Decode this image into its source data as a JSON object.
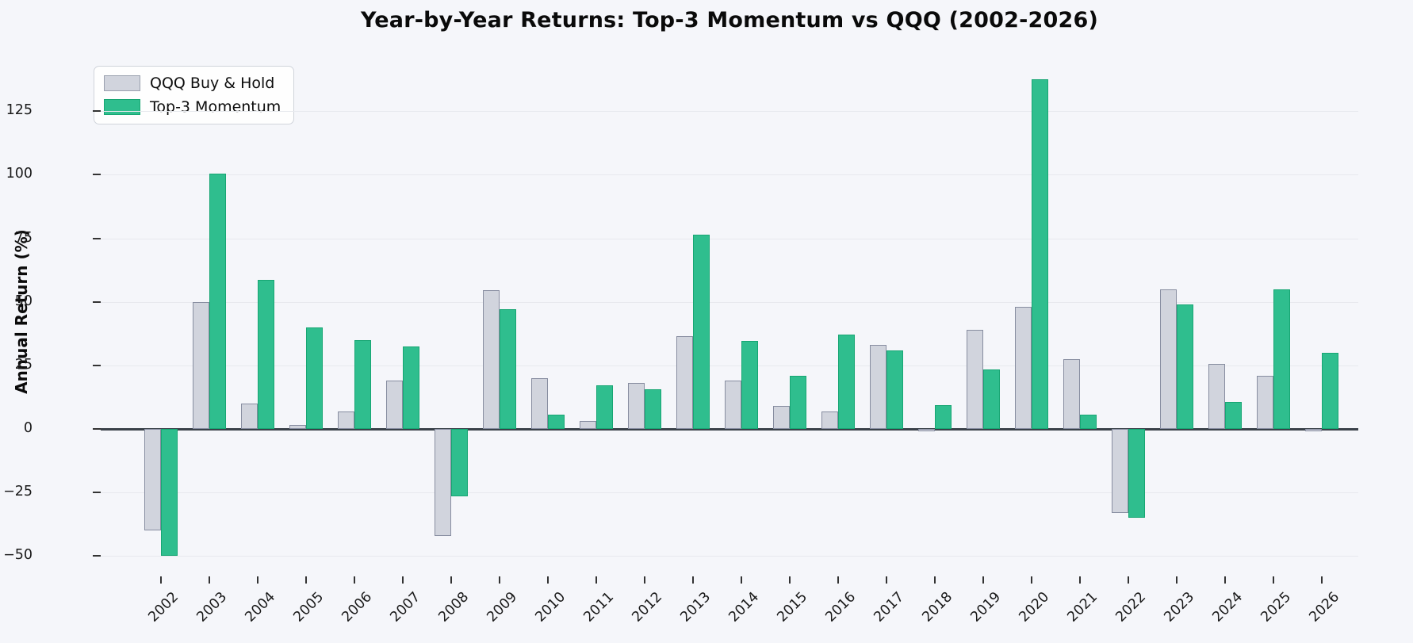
{
  "title": "Year-by-Year Returns: Top-3 Momentum vs QQQ (2002-2026)",
  "ylabel": "Annual Return (%)",
  "legend": {
    "items": [
      {
        "label": "QQQ Buy & Hold",
        "swatch_color": "#d1d4dd",
        "swatch_border": "#9aa0ae"
      },
      {
        "label": "Top-3 Momentum",
        "swatch_color": "#2fbe8e",
        "swatch_border": "#17a673"
      }
    ]
  },
  "chart_data": {
    "type": "bar",
    "title": "Year-by-Year Returns: Top-3 Momentum vs QQQ (2002-2026)",
    "xlabel": "",
    "ylabel": "Annual Return (%)",
    "categories": [
      "2002",
      "2003",
      "2004",
      "2005",
      "2006",
      "2007",
      "2008",
      "2009",
      "2010",
      "2011",
      "2012",
      "2013",
      "2014",
      "2015",
      "2016",
      "2017",
      "2018",
      "2019",
      "2020",
      "2021",
      "2022",
      "2023",
      "2024",
      "2025",
      "2026"
    ],
    "series": [
      {
        "name": "QQQ Buy & Hold",
        "color": "#d1d4dd",
        "border_color": "#878da0",
        "values": [
          -40,
          50,
          10,
          1.5,
          7,
          19,
          -42,
          54.5,
          20,
          3,
          18,
          36.5,
          19,
          9,
          7,
          33,
          -1,
          39,
          48,
          27.5,
          -33,
          55,
          25.5,
          21,
          -1
        ]
      },
      {
        "name": "Top-3 Momentum",
        "color": "#2fbe8e",
        "border_color": "#17a673",
        "values": [
          -50,
          100.5,
          58.5,
          40,
          35,
          32.5,
          -26.5,
          47,
          5.5,
          17,
          15.5,
          76.5,
          34.5,
          21,
          37,
          31,
          9.5,
          23.5,
          137.5,
          5.5,
          -35,
          49,
          10.5,
          55,
          30
        ]
      }
    ],
    "yticks": [
      "−50",
      "−25",
      "0",
      "25",
      "50",
      "75",
      "100",
      "125"
    ],
    "ytick_values": [
      -50,
      -25,
      0,
      25,
      50,
      75,
      100,
      125
    ],
    "ylim": [
      -58,
      150
    ],
    "grid": "horizontal",
    "legend_position": "upper-left",
    "background_color": "#f5f6fa",
    "zero_line_color": "#3a4149"
  }
}
